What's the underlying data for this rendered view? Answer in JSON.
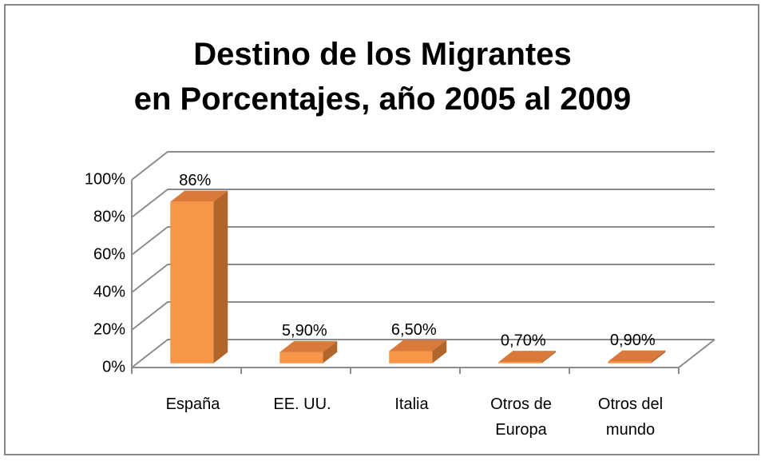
{
  "chart_data": {
    "type": "bar3d",
    "title": "Destino de los Migrantes\nen Porcentajes, año 2005 al 2009",
    "categories": [
      "España",
      "EE. UU.",
      "Italia",
      "Otros de Europa",
      "Otros del mundo"
    ],
    "values": [
      86,
      5.9,
      6.5,
      0.7,
      0.9
    ],
    "value_labels": [
      "86%",
      "5,90%",
      "6,50%",
      "0,70%",
      "0,90%"
    ],
    "color": "#f79646",
    "ylim": [
      0,
      100
    ],
    "yticks": [
      {
        "value": 0,
        "label": "0%"
      },
      {
        "value": 20,
        "label": "20%"
      },
      {
        "value": 40,
        "label": "40%"
      },
      {
        "value": 60,
        "label": "60%"
      },
      {
        "value": 80,
        "label": "80%"
      },
      {
        "value": 100,
        "label": "100%"
      }
    ],
    "grid": true
  }
}
